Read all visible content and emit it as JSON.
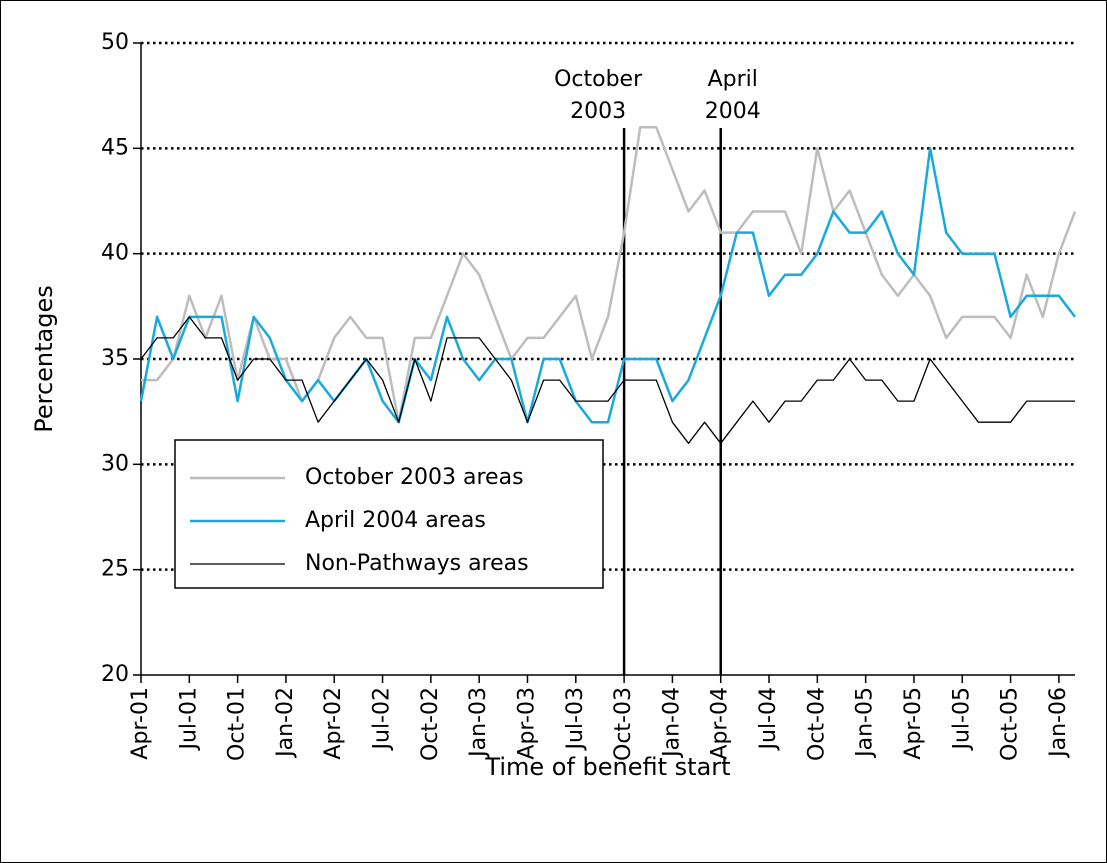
{
  "chart_data": {
    "type": "line",
    "x_label": "Time of benefit start",
    "y_label": "Percentages",
    "categories": [
      "Apr-01",
      null,
      null,
      "Jul-01",
      null,
      null,
      "Oct-01",
      null,
      null,
      "Jan-02",
      null,
      null,
      "Apr-02",
      null,
      null,
      "Jul-02",
      null,
      null,
      "Oct-02",
      null,
      null,
      "Jan-03",
      null,
      null,
      "Apr-03",
      null,
      null,
      "Jul-03",
      null,
      null,
      "Oct-03",
      null,
      null,
      "Jan-04",
      null,
      null,
      "Apr-04",
      null,
      null,
      "Jul-04",
      null,
      null,
      "Oct-04",
      null,
      null,
      "Jan-05",
      null,
      null,
      "Apr-05",
      null,
      null,
      "Jul-05",
      null,
      null,
      "Oct-05",
      null,
      null,
      "Jan-06",
      null
    ],
    "series": [
      {
        "name": "October 2003 areas",
        "color": "#bdbdbd",
        "width": 2.5,
        "values": [
          34,
          34,
          35,
          38,
          36,
          38,
          34,
          37,
          35,
          35,
          33,
          34,
          36,
          37,
          36,
          36,
          32,
          36,
          36,
          38,
          40,
          39,
          37,
          35,
          36,
          36,
          37,
          38,
          35,
          37,
          41,
          46,
          46,
          44,
          42,
          43,
          41,
          41,
          42,
          42,
          42,
          40,
          45,
          42,
          43,
          41,
          39,
          38,
          39,
          38,
          36,
          37,
          37,
          37,
          36,
          39,
          37,
          40,
          42
        ]
      },
      {
        "name": "April 2004 areas",
        "color": "#1aa9df",
        "width": 2.5,
        "values": [
          33,
          37,
          35,
          37,
          37,
          37,
          33,
          37,
          36,
          34,
          33,
          34,
          33,
          34,
          35,
          33,
          32,
          35,
          34,
          37,
          35,
          34,
          35,
          35,
          32,
          35,
          35,
          33,
          32,
          32,
          35,
          35,
          35,
          33,
          34,
          36,
          38,
          41,
          41,
          38,
          39,
          39,
          40,
          42,
          41,
          41,
          42,
          40,
          39,
          45,
          41,
          40,
          40,
          40,
          37,
          38,
          38,
          38,
          37
        ]
      },
      {
        "name": "Non-Pathways areas",
        "color": "#000000",
        "width": 1.3,
        "values": [
          35,
          36,
          36,
          37,
          36,
          36,
          34,
          35,
          35,
          34,
          34,
          32,
          33,
          34,
          35,
          34,
          32,
          35,
          33,
          36,
          36,
          36,
          35,
          34,
          32,
          34,
          34,
          33,
          33,
          33,
          34,
          34,
          34,
          32,
          31,
          32,
          31,
          32,
          33,
          32,
          33,
          33,
          34,
          34,
          35,
          34,
          34,
          33,
          33,
          35,
          34,
          33,
          32,
          32,
          32,
          33,
          33,
          33,
          33
        ]
      }
    ],
    "annotations": [
      {
        "lines": [
          "October",
          "2003"
        ],
        "category": 30
      },
      {
        "lines": [
          "April",
          "2004"
        ],
        "category": 36
      }
    ],
    "ylim": [
      20,
      50
    ],
    "yticks": [
      20,
      25,
      30,
      35,
      40,
      45,
      50
    ],
    "grid": true,
    "legend": "lower left"
  }
}
